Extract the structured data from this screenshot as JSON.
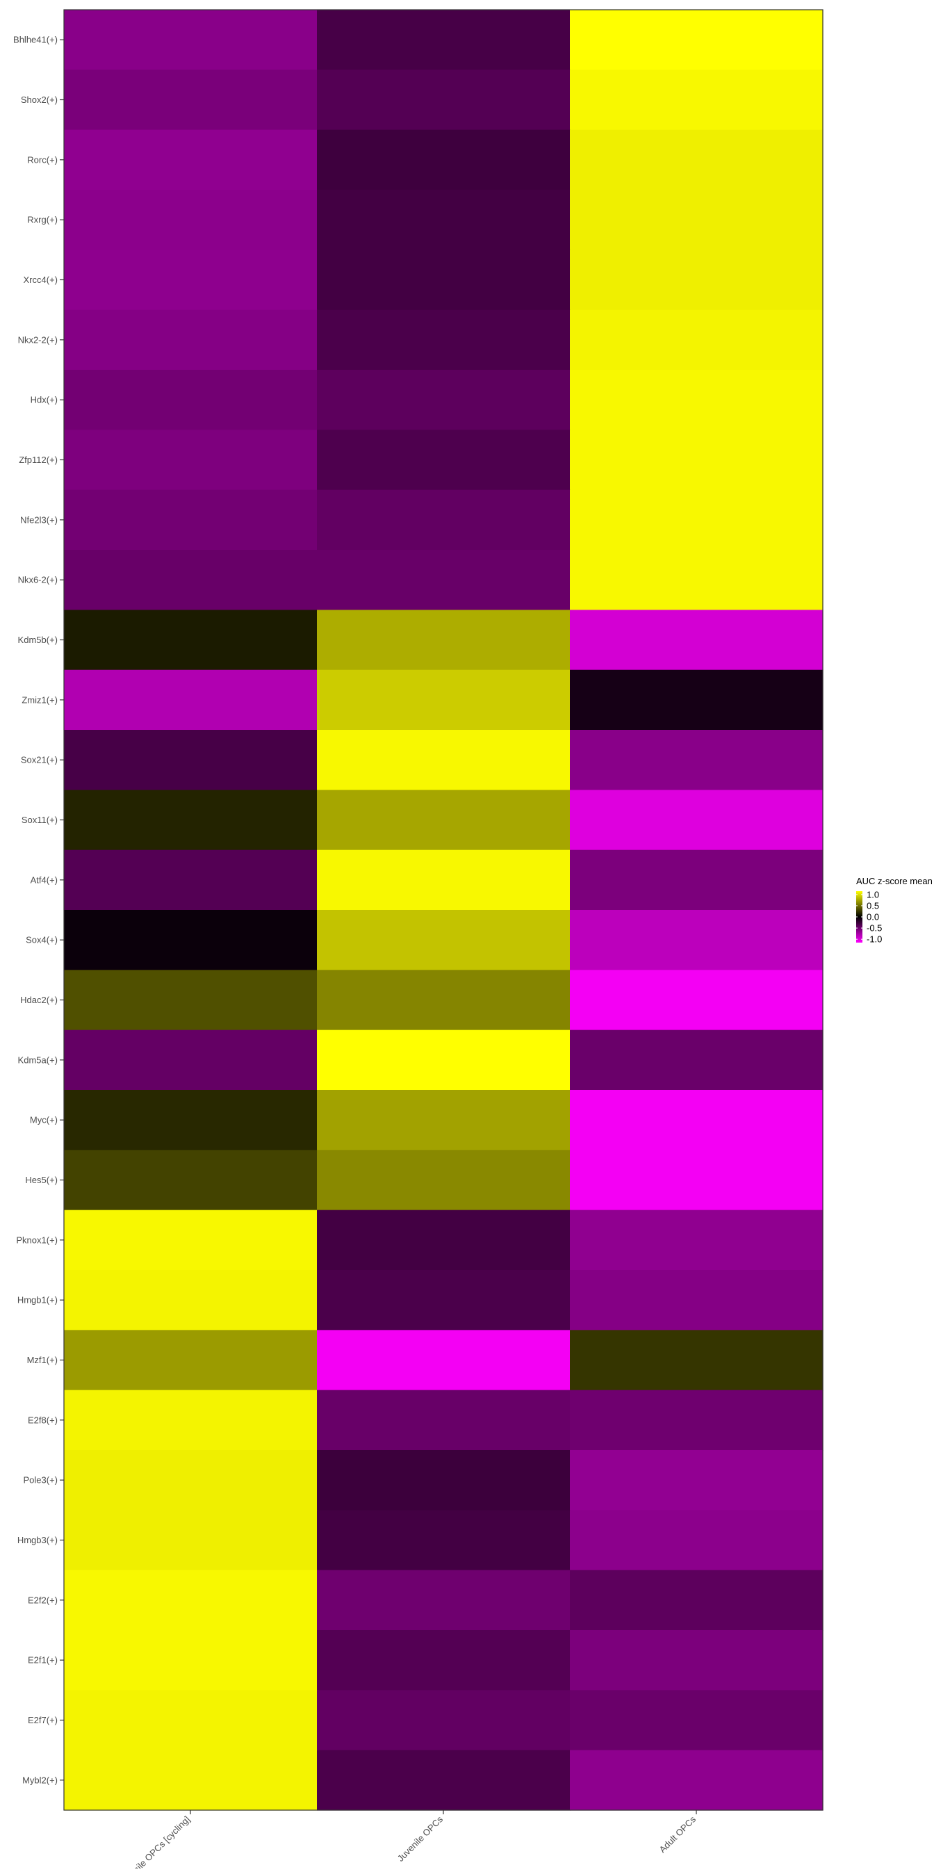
{
  "chart_data": {
    "type": "heatmap",
    "title": "",
    "xlabel": "",
    "ylabel": "",
    "columns": [
      "Juvenile OPCs [cycling]",
      "Juvenile OPCs",
      "Adult OPCs"
    ],
    "rows": [
      "Bhlhe41(+)",
      "Shox2(+)",
      "Rorc(+)",
      "Rxrg(+)",
      "Xrcc4(+)",
      "Nkx2-2(+)",
      "Hdx(+)",
      "Zfp112(+)",
      "Nfe2l3(+)",
      "Nkx6-2(+)",
      "Kdm5b(+)",
      "Zmiz1(+)",
      "Sox21(+)",
      "Sox11(+)",
      "Atf4(+)",
      "Sox4(+)",
      "Hdac2(+)",
      "Kdm5a(+)",
      "Myc(+)",
      "Hes5(+)",
      "Pknox1(+)",
      "Hmgb1(+)",
      "Mzf1(+)",
      "E2f8(+)",
      "Pole3(+)",
      "Hmgb3(+)",
      "E2f2(+)",
      "E2f1(+)",
      "E2f7(+)",
      "Mybl2(+)"
    ],
    "values": [
      [
        -0.62,
        -0.32,
        1.15
      ],
      [
        -0.55,
        -0.38,
        1.12
      ],
      [
        -0.65,
        -0.28,
        1.08
      ],
      [
        -0.63,
        -0.3,
        1.08
      ],
      [
        -0.64,
        -0.3,
        1.08
      ],
      [
        -0.6,
        -0.34,
        1.1
      ],
      [
        -0.52,
        -0.42,
        1.12
      ],
      [
        -0.57,
        -0.35,
        1.12
      ],
      [
        -0.52,
        -0.44,
        1.12
      ],
      [
        -0.47,
        -0.47,
        1.12
      ],
      [
        0.12,
        0.78,
        -0.95
      ],
      [
        -0.8,
        0.92,
        -0.1
      ],
      [
        -0.32,
        1.12,
        -0.62
      ],
      [
        0.16,
        0.75,
        -1.0
      ],
      [
        -0.38,
        1.12,
        -0.56
      ],
      [
        -0.05,
        0.88,
        -0.85
      ],
      [
        0.36,
        0.6,
        -1.1
      ],
      [
        -0.45,
        1.15,
        -0.48
      ],
      [
        0.18,
        0.73,
        -1.1
      ],
      [
        0.3,
        0.62,
        -1.1
      ],
      [
        1.12,
        -0.3,
        -0.65
      ],
      [
        1.1,
        -0.34,
        -0.6
      ],
      [
        0.7,
        -1.1,
        0.24
      ],
      [
        1.1,
        -0.47,
        -0.5
      ],
      [
        1.08,
        -0.27,
        -0.66
      ],
      [
        1.08,
        -0.3,
        -0.63
      ],
      [
        1.12,
        -0.5,
        -0.42
      ],
      [
        1.12,
        -0.38,
        -0.56
      ],
      [
        1.1,
        -0.44,
        -0.48
      ],
      [
        1.1,
        -0.34,
        -0.64
      ]
    ],
    "legend": {
      "title": "AUC z-score mean",
      "ticks": [
        1.0,
        0.5,
        0.0,
        -0.5,
        -1.0
      ],
      "tick_labels": [
        "1.0",
        "0.5",
        "0.0",
        "-0.5",
        "-1.0"
      ],
      "range": [
        -1.15,
        1.15
      ],
      "position": "right"
    },
    "colorscale": {
      "low": "#ff00ff",
      "mid": "#000000",
      "high": "#ffff00"
    },
    "grid": false
  }
}
